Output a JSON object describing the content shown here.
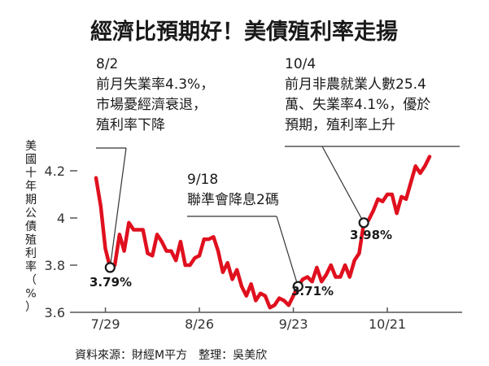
{
  "chart_data": {
    "type": "line",
    "title": "經濟比預期好！美債殖利率走揚",
    "ylabel": "美國十年期公債殖利率（%）",
    "ylim": [
      3.6,
      4.35
    ],
    "yticks": [
      "3.6",
      "3.8",
      "4",
      "4.2"
    ],
    "ytick_values": [
      3.6,
      3.8,
      4.0,
      4.2
    ],
    "xticks": [
      "7/29",
      "8/26",
      "9/23",
      "10/21"
    ],
    "xtick_index": [
      2,
      22,
      42,
      62
    ],
    "source": "資料來源：財經M平方　整理：吳美欣",
    "color": "#e0101e",
    "series": [
      {
        "values": [
          4.17,
          4.05,
          3.87,
          3.79,
          3.8,
          3.93,
          3.86,
          3.98,
          3.95,
          3.95,
          3.95,
          3.85,
          3.84,
          3.93,
          3.9,
          3.86,
          3.86,
          3.82,
          3.9,
          3.8,
          3.8,
          3.83,
          3.84,
          3.91,
          3.91,
          3.92,
          3.86,
          3.77,
          3.81,
          3.74,
          3.78,
          3.71,
          3.67,
          3.72,
          3.65,
          3.68,
          3.67,
          3.62,
          3.63,
          3.66,
          3.65,
          3.63,
          3.67,
          3.71,
          3.74,
          3.75,
          3.73,
          3.79,
          3.73,
          3.76,
          3.8,
          3.75,
          3.75,
          3.8,
          3.75,
          3.82,
          3.85,
          3.98,
          3.99,
          4.03,
          4.08,
          4.07,
          4.1,
          4.1,
          4.02,
          4.09,
          4.08,
          4.15,
          4.22,
          4.19,
          4.22,
          4.26
        ]
      }
    ],
    "annotations": [
      {
        "lines": [
          "8/2",
          "前月失業率4.3%，",
          "市場憂經濟衰退，",
          "殖利率下降"
        ],
        "index": 3,
        "value_label": "3.79%"
      },
      {
        "lines": [
          "9/18",
          "聯準會降息2碼"
        ],
        "index": 43,
        "value_label": "3.71%"
      },
      {
        "lines": [
          "10/4",
          "前月非農就業人數25.4",
          "萬、失業率4.1%，優於",
          "預期，殖利率上升"
        ],
        "index": 57,
        "value_label": "3.98%"
      }
    ]
  }
}
